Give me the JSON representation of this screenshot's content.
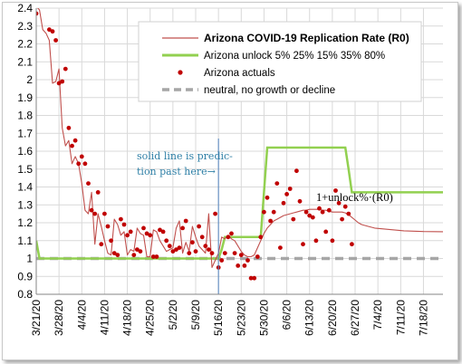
{
  "chart_data": {
    "type": "line",
    "title": "",
    "xlabel": "",
    "ylabel": "",
    "ylim": [
      0.8,
      2.4
    ],
    "yticks": [
      "0.8",
      "0.9",
      "1",
      "1.1",
      "1.2",
      "1.3",
      "1.4",
      "1.5",
      "1.6",
      "1.7",
      "1.8",
      "1.9",
      "2",
      "2.1",
      "2.2",
      "2.3",
      "2.4"
    ],
    "x_start": "3/21/20",
    "x_end": "7/24/20",
    "xticks": [
      "3/21/20",
      "3/28/20",
      "4/4/20",
      "4/11/20",
      "4/18/20",
      "4/25/20",
      "5/2/20",
      "5/9/20",
      "5/16/20",
      "5/23/20",
      "5/30/20",
      "6/6/20",
      "6/13/20",
      "6/20/20",
      "6/27/20",
      "7/4/20",
      "7/11/20",
      "7/18/20"
    ],
    "grid": true,
    "legend_position": "top-right",
    "legend_title": "Arizona COVID-19 Replication Rate (R0)",
    "series": [
      {
        "name": "Arizona COVID-19 Replication Rate (R0)",
        "style": "line",
        "color": "#c0504d",
        "points": [
          [
            "3/21/20",
            2.41
          ],
          [
            "3/22/20",
            2.39
          ],
          [
            "3/23/20",
            2.28
          ],
          [
            "3/24/20",
            2.26
          ],
          [
            "3/25/20",
            2.22
          ],
          [
            "3/26/20",
            1.98
          ],
          [
            "3/27/20",
            1.99
          ],
          [
            "3/28/20",
            2.06
          ],
          [
            "3/29/20",
            1.73
          ],
          [
            "3/30/20",
            1.63
          ],
          [
            "3/31/20",
            1.66
          ],
          [
            "4/1/20",
            1.53
          ],
          [
            "4/2/20",
            1.57
          ],
          [
            "4/3/20",
            1.53
          ],
          [
            "4/4/20",
            1.42
          ],
          [
            "4/5/20",
            1.27
          ],
          [
            "4/6/20",
            1.25
          ],
          [
            "4/7/20",
            1.37
          ],
          [
            "4/8/20",
            1.08
          ],
          [
            "4/9/20",
            1.25
          ],
          [
            "4/10/20",
            1.18
          ],
          [
            "4/11/20",
            1.1
          ],
          [
            "4/12/20",
            1.03
          ],
          [
            "4/13/20",
            1.02
          ],
          [
            "4/14/20",
            1.22
          ],
          [
            "4/15/20",
            1.19
          ],
          [
            "4/16/20",
            1.13
          ],
          [
            "4/17/20",
            1.15
          ],
          [
            "4/18/20",
            1.02
          ],
          [
            "4/19/20",
            1.05
          ],
          [
            "4/20/20",
            1.04
          ],
          [
            "4/21/20",
            1.17
          ],
          [
            "4/22/20",
            1.14
          ],
          [
            "4/23/20",
            1.13
          ],
          [
            "4/24/20",
            1.01
          ],
          [
            "4/25/20",
            1.01
          ],
          [
            "4/26/20",
            1.16
          ],
          [
            "4/27/20",
            1.15
          ],
          [
            "4/28/20",
            1.1
          ],
          [
            "4/29/20",
            1.07
          ],
          [
            "4/30/20",
            1.04
          ],
          [
            "5/1/20",
            1.05
          ],
          [
            "5/2/20",
            1.06
          ],
          [
            "5/3/20",
            1.17
          ],
          [
            "5/4/20",
            1.21
          ],
          [
            "5/5/20",
            1.03
          ],
          [
            "5/6/20",
            1.09
          ],
          [
            "5/7/20",
            1.04
          ],
          [
            "5/8/20",
            1.18
          ],
          [
            "5/9/20",
            1.12
          ],
          [
            "5/10/20",
            1.07
          ],
          [
            "5/11/20",
            1.05
          ],
          [
            "5/12/20",
            1.03
          ],
          [
            "5/13/20",
            1.25
          ],
          [
            "5/14/20",
            0.95
          ],
          [
            "5/15/20",
            0.99
          ],
          [
            "5/16/20",
            1.03
          ],
          [
            "5/17/20",
            1.12
          ],
          [
            "5/18/20",
            1.11
          ],
          [
            "5/19/20",
            1.13
          ],
          [
            "5/20/20",
            1.11
          ],
          [
            "5/21/20",
            1.1
          ],
          [
            "5/22/20",
            1.07
          ],
          [
            "5/23/20",
            1.04
          ],
          [
            "5/24/20",
            1.02
          ],
          [
            "5/25/20",
            1.01
          ],
          [
            "5/26/20",
            1.01
          ],
          [
            "5/27/20",
            1.02
          ],
          [
            "5/28/20",
            1.06
          ],
          [
            "5/29/20",
            1.1
          ],
          [
            "5/30/20",
            1.14
          ],
          [
            "5/31/20",
            1.17
          ],
          [
            "6/1/20",
            1.19
          ],
          [
            "6/2/20",
            1.21
          ],
          [
            "6/3/20",
            1.22
          ],
          [
            "6/4/20",
            1.23
          ],
          [
            "6/5/20",
            1.24
          ],
          [
            "6/6/20",
            1.245
          ],
          [
            "6/7/20",
            1.25
          ],
          [
            "6/8/20",
            1.255
          ],
          [
            "6/9/20",
            1.26
          ],
          [
            "6/10/20",
            1.265
          ],
          [
            "6/11/20",
            1.27
          ],
          [
            "6/12/20",
            1.27
          ],
          [
            "6/13/20",
            1.275
          ],
          [
            "6/14/20",
            1.275
          ],
          [
            "6/15/20",
            1.275
          ],
          [
            "6/16/20",
            1.275
          ],
          [
            "6/17/20",
            1.27
          ],
          [
            "6/18/20",
            1.27
          ],
          [
            "6/19/20",
            1.265
          ],
          [
            "6/20/20",
            1.26
          ],
          [
            "6/21/20",
            1.26
          ],
          [
            "6/22/20",
            1.26
          ],
          [
            "6/23/20",
            1.26
          ],
          [
            "6/24/20",
            1.255
          ],
          [
            "6/25/20",
            1.245
          ],
          [
            "6/26/20",
            1.23
          ],
          [
            "6/27/20",
            1.215
          ],
          [
            "6/28/20",
            1.2
          ],
          [
            "6/29/20",
            1.19
          ],
          [
            "6/30/20",
            1.185
          ],
          [
            "7/1/20",
            1.18
          ],
          [
            "7/3/20",
            1.17
          ],
          [
            "7/6/20",
            1.165
          ],
          [
            "7/9/20",
            1.16
          ],
          [
            "7/12/20",
            1.155
          ],
          [
            "7/15/20",
            1.153
          ],
          [
            "7/18/20",
            1.151
          ],
          [
            "7/24/20",
            1.15
          ]
        ]
      },
      {
        "name": "Arizona unlock 5% 25% 15% 35% 80%",
        "style": "step",
        "color": "#92d050",
        "points": [
          [
            "3/21/20",
            1.1
          ],
          [
            "3/22/20",
            1.0
          ],
          [
            "5/16/20",
            1.0
          ],
          [
            "5/17/20",
            1.05
          ],
          [
            "5/18/20",
            1.12
          ],
          [
            "5/29/20",
            1.12
          ],
          [
            "5/30/20",
            1.37
          ],
          [
            "5/31/20",
            1.62
          ],
          [
            "6/24/20",
            1.62
          ],
          [
            "6/25/20",
            1.5
          ],
          [
            "6/26/20",
            1.37
          ],
          [
            "7/24/20",
            1.37
          ]
        ]
      },
      {
        "name": "Arizona actuals",
        "style": "markers",
        "color": "#c00000",
        "points": [
          [
            "3/21/20",
            2.37
          ],
          [
            "3/25/20",
            2.28
          ],
          [
            "3/26/20",
            2.27
          ],
          [
            "3/27/20",
            2.22
          ],
          [
            "3/28/20",
            1.98
          ],
          [
            "3/29/20",
            1.99
          ],
          [
            "3/30/20",
            2.06
          ],
          [
            "3/31/20",
            1.73
          ],
          [
            "4/1/20",
            1.63
          ],
          [
            "4/2/20",
            1.66
          ],
          [
            "4/3/20",
            1.53
          ],
          [
            "4/4/20",
            1.57
          ],
          [
            "4/5/20",
            1.53
          ],
          [
            "4/6/20",
            1.42
          ],
          [
            "4/7/20",
            1.27
          ],
          [
            "4/8/20",
            1.25
          ],
          [
            "4/9/20",
            1.37
          ],
          [
            "4/10/20",
            1.08
          ],
          [
            "4/11/20",
            1.25
          ],
          [
            "4/12/20",
            1.18
          ],
          [
            "4/13/20",
            1.1
          ],
          [
            "4/14/20",
            1.03
          ],
          [
            "4/15/20",
            1.02
          ],
          [
            "4/16/20",
            1.22
          ],
          [
            "4/17/20",
            1.19
          ],
          [
            "4/18/20",
            1.13
          ],
          [
            "4/19/20",
            1.15
          ],
          [
            "4/20/20",
            1.02
          ],
          [
            "4/21/20",
            1.05
          ],
          [
            "4/22/20",
            1.04
          ],
          [
            "4/23/20",
            1.17
          ],
          [
            "4/24/20",
            1.14
          ],
          [
            "4/25/20",
            1.13
          ],
          [
            "4/26/20",
            1.01
          ],
          [
            "4/27/20",
            1.01
          ],
          [
            "4/28/20",
            1.16
          ],
          [
            "4/29/20",
            1.15
          ],
          [
            "4/30/20",
            1.1
          ],
          [
            "5/1/20",
            1.07
          ],
          [
            "5/2/20",
            1.04
          ],
          [
            "5/3/20",
            1.05
          ],
          [
            "5/4/20",
            1.06
          ],
          [
            "5/5/20",
            1.17
          ],
          [
            "5/6/20",
            1.21
          ],
          [
            "5/7/20",
            1.03
          ],
          [
            "5/8/20",
            1.09
          ],
          [
            "5/9/20",
            1.04
          ],
          [
            "5/10/20",
            1.18
          ],
          [
            "5/11/20",
            1.12
          ],
          [
            "5/12/20",
            1.07
          ],
          [
            "5/13/20",
            1.05
          ],
          [
            "5/14/20",
            1.03
          ],
          [
            "5/15/20",
            1.25
          ],
          [
            "5/16/20",
            0.95
          ],
          [
            "5/17/20",
            0.99
          ],
          [
            "5/18/20",
            1.03
          ],
          [
            "5/19/20",
            1.12
          ],
          [
            "5/20/20",
            1.14
          ],
          [
            "5/21/20",
            1.03
          ],
          [
            "5/22/20",
            0.96
          ],
          [
            "5/23/20",
            1.02
          ],
          [
            "5/24/20",
            0.96
          ],
          [
            "5/25/20",
            0.99
          ],
          [
            "5/26/20",
            0.89
          ],
          [
            "5/27/20",
            0.89
          ],
          [
            "5/28/20",
            1.01
          ],
          [
            "5/29/20",
            1.12
          ],
          [
            "5/30/20",
            1.26
          ],
          [
            "5/31/20",
            1.34
          ],
          [
            "6/1/20",
            1.21
          ],
          [
            "6/2/20",
            1.26
          ],
          [
            "6/3/20",
            1.42
          ],
          [
            "6/4/20",
            1.06
          ],
          [
            "6/5/20",
            1.31
          ],
          [
            "6/6/20",
            1.36
          ],
          [
            "6/7/20",
            1.39
          ],
          [
            "6/8/20",
            1.22
          ],
          [
            "6/9/20",
            1.49
          ],
          [
            "6/10/20",
            1.32
          ],
          [
            "6/11/20",
            1.08
          ],
          [
            "6/12/20",
            1.26
          ],
          [
            "6/13/20",
            1.24
          ],
          [
            "6/14/20",
            1.23
          ],
          [
            "6/15/20",
            1.1
          ],
          [
            "6/16/20",
            1.28
          ],
          [
            "6/17/20",
            1.26
          ],
          [
            "6/18/20",
            1.15
          ],
          [
            "6/19/20",
            1.27
          ],
          [
            "6/20/20",
            1.1
          ],
          [
            "6/21/20",
            1.38
          ],
          [
            "6/22/20",
            1.31
          ],
          [
            "6/23/20",
            1.22
          ],
          [
            "6/24/20",
            1.29
          ],
          [
            "6/25/20",
            1.25
          ],
          [
            "6/26/20",
            1.08
          ]
        ]
      },
      {
        "name": "neutral, no growth or decline",
        "style": "dashed",
        "color": "#a6a6a6",
        "points": [
          [
            "3/21/20",
            1.0
          ],
          [
            "7/24/20",
            1.0
          ]
        ]
      }
    ],
    "vertical_marker": {
      "x": "5/16/20",
      "color": "#4f81bd"
    },
    "annotations": {
      "prediction_note_line1": "solid line is predic-",
      "prediction_note_line2": "tion past here→",
      "r0_label": "1+unlock%·(R0)"
    }
  }
}
